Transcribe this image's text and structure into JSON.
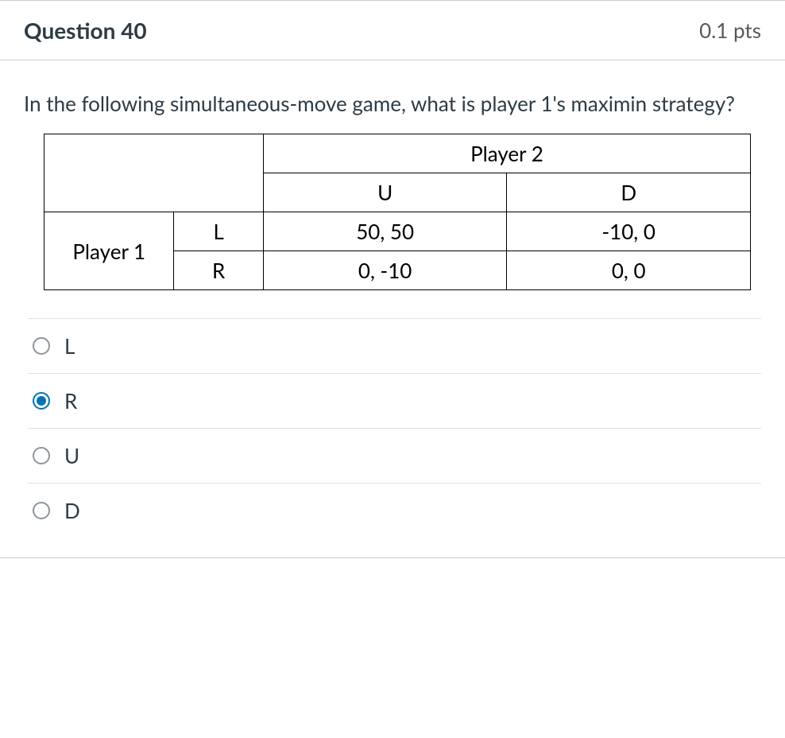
{
  "header": {
    "title": "Question 40",
    "points": "0.1 pts"
  },
  "question": {
    "text": "In the following simultaneous-move game, what is player 1's maximin strategy?"
  },
  "game_table": {
    "type": "table",
    "player2_label": "Player 2",
    "player1_label": "Player 1",
    "player2_strategies": [
      "U",
      "D"
    ],
    "player1_strategies": [
      "L",
      "R"
    ],
    "payoffs": [
      [
        "50, 50",
        "-10, 0"
      ],
      [
        "0, -10",
        "0, 0"
      ]
    ],
    "border_color": "#000000",
    "text_color": "#000000",
    "font_size": 26,
    "col_widths": {
      "player1": 160,
      "strategy": 110,
      "payoff": 300
    }
  },
  "options": [
    {
      "label": "L",
      "selected": false
    },
    {
      "label": "R",
      "selected": true
    },
    {
      "label": "U",
      "selected": false
    },
    {
      "label": "D",
      "selected": false
    }
  ],
  "colors": {
    "text": "#2d3b45",
    "muted": "#595959",
    "border": "#c7cdd1",
    "divider": "#dee2e6",
    "accent": "#0374b5",
    "background": "#ffffff"
  }
}
